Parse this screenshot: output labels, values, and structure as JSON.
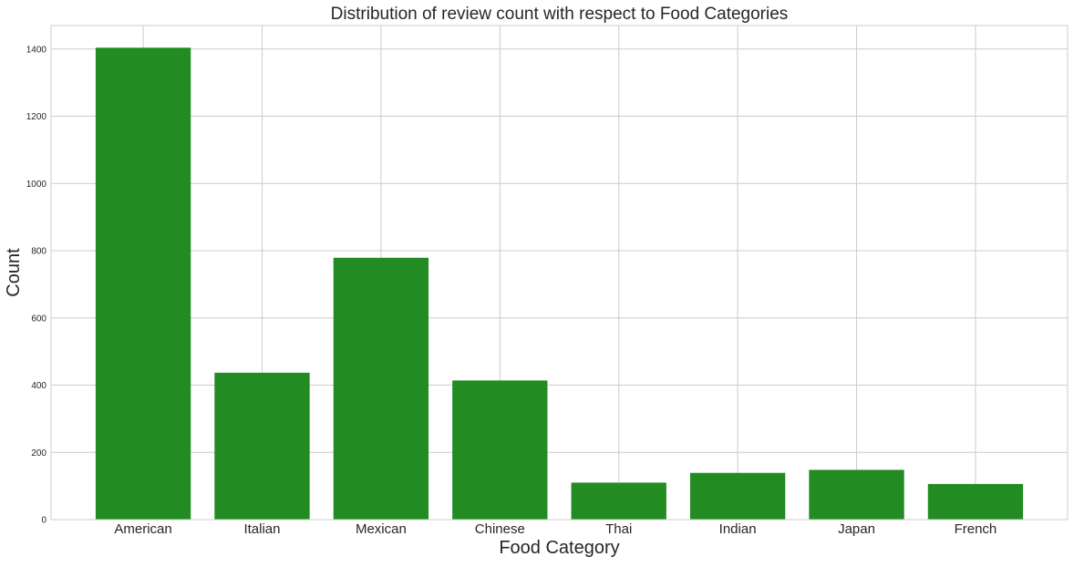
{
  "chart_data": {
    "type": "bar",
    "title": "Distribution of review count with respect to Food Categories",
    "xlabel": "Food Category",
    "ylabel": "Count",
    "categories": [
      "American",
      "Italian",
      "Mexican",
      "Chinese",
      "Thai",
      "Indian",
      "Japan",
      "French"
    ],
    "values": [
      1404,
      437,
      779,
      414,
      110,
      139,
      148,
      106
    ],
    "ylim": [
      0,
      1470
    ],
    "yticks": [
      0,
      200,
      400,
      600,
      800,
      1000,
      1200,
      1400
    ],
    "grid": true,
    "bar_color": "#228b22"
  }
}
